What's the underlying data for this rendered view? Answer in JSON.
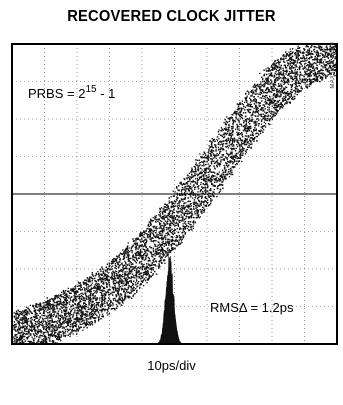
{
  "title": "RECOVERED CLOCK JITTER",
  "side_code": "MAX3874 toc08",
  "chart_data": {
    "type": "scatter",
    "title": "RECOVERED CLOCK JITTER",
    "xlabel": "10ps/div",
    "ylabel": "",
    "annotations": {
      "prbs_prefix": "PRBS = 2",
      "prbs_exponent": "15",
      "prbs_suffix": " - 1",
      "rms_label": "RMSΔ = 1.2ps"
    },
    "grid": true,
    "grid_divisions": {
      "x": 10,
      "y": 8
    },
    "colors": {
      "trace": "#111111",
      "background": "#ffffff",
      "frame": "#000000",
      "grid": "#555555"
    },
    "trace": {
      "description_points_div": [
        [
          0.0,
          0.25
        ],
        [
          1.0,
          0.55
        ],
        [
          2.0,
          0.95
        ],
        [
          3.0,
          1.5
        ],
        [
          4.0,
          2.3
        ],
        [
          5.0,
          3.3
        ],
        [
          6.0,
          4.5
        ],
        [
          7.0,
          5.7
        ],
        [
          8.0,
          6.8
        ],
        [
          9.0,
          7.5
        ],
        [
          10.0,
          7.9
        ]
      ],
      "band_width_div": 0.9
    },
    "histogram": {
      "center_div": 4.85,
      "baseline_div": 0.0,
      "peak_height_div": 2.1,
      "rms_jitter_ps": 1.2
    },
    "horizontal_marker_div": 4.0
  }
}
